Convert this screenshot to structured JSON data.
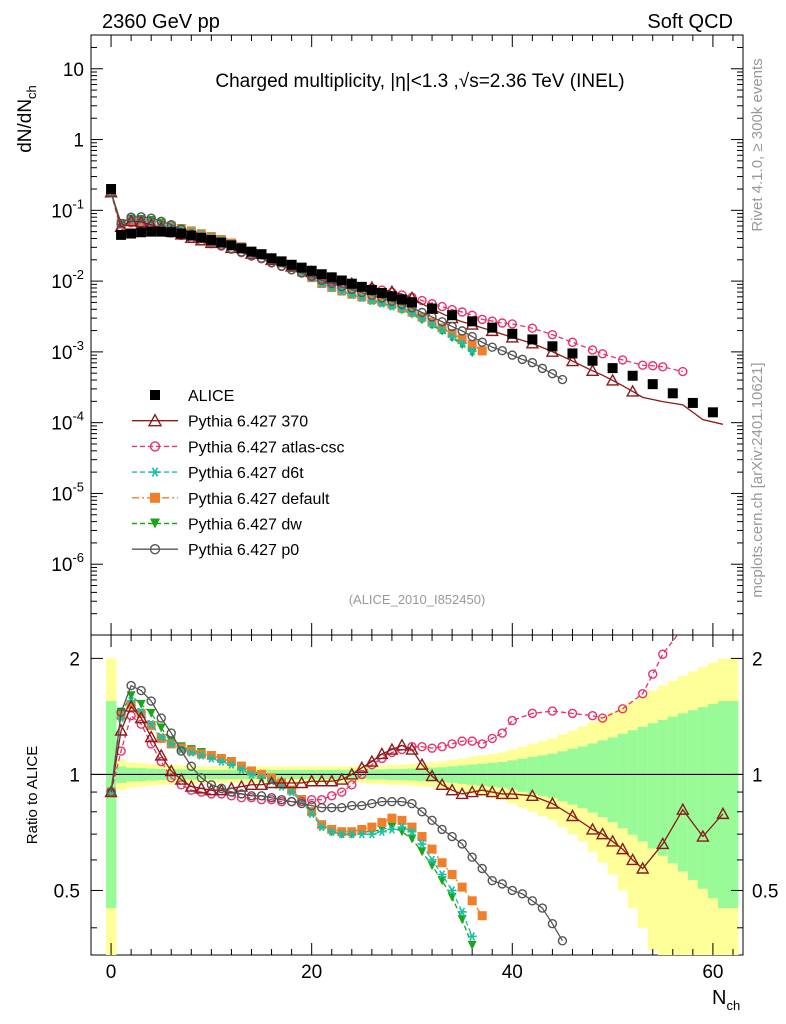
{
  "header": {
    "left": "2360 GeV pp",
    "right": "Soft QCD"
  },
  "side_labels": {
    "rivet": "Rivet 4.1.0, ≥ 300k events",
    "mcplots": "mcplots.cern.ch [arXiv:2401.10621]"
  },
  "chart_data": {
    "type": "scatter",
    "title": "Charged multiplicity, |η|<1.3 ,√s=2.36 TeV (INEL)",
    "analysis_tag": "(ALICE_2010_I852450)",
    "ylabel": "dN/dN_ch",
    "xlabel": "N_ch",
    "ratio_ylabel": "Ratio to ALICE",
    "xlim": [
      -2,
      63
    ],
    "ylim": [
      1e-07,
      30
    ],
    "ratio_ylim": [
      0.34,
      2.3
    ],
    "x_ticks": [
      0,
      20,
      40,
      60
    ],
    "y_ticks": [
      "10",
      "1",
      "10^-1",
      "10^-2",
      "10^-3",
      "10^-4",
      "10^-5",
      "10^-6"
    ],
    "ratio_ticks": [
      "0.5",
      "1",
      "2"
    ],
    "x": [
      0,
      1,
      2,
      3,
      4,
      5,
      6,
      7,
      8,
      9,
      10,
      11,
      12,
      13,
      14,
      15,
      16,
      17,
      18,
      19,
      20,
      21,
      22,
      23,
      24,
      25,
      26,
      27,
      28,
      29,
      30,
      31,
      32,
      33,
      34,
      35,
      36,
      37,
      38,
      39,
      40,
      41,
      42,
      43,
      44,
      45,
      46,
      47,
      48,
      49,
      50,
      51,
      52,
      53,
      54,
      55,
      56,
      57,
      58,
      59,
      60,
      61,
      62
    ],
    "alice": [
      0.2,
      0.045,
      0.047,
      0.049,
      0.05,
      0.05,
      0.049,
      0.047,
      0.044,
      0.041,
      0.038,
      0.035,
      0.032,
      0.029,
      0.026,
      0.024,
      0.021,
      0.019,
      0.017,
      0.0155,
      0.014,
      0.0125,
      0.0113,
      0.0102,
      0.0092,
      0.0083,
      0.0075,
      0.0068,
      0.0061,
      0.0055,
      0.005,
      0.0045,
      0.0041,
      0.0037,
      0.0033,
      0.003,
      0.0027,
      0.0024,
      0.0022,
      0.002,
      0.0018,
      0.0016,
      0.0015,
      0.0013,
      0.0012,
      0.0011,
      0.00095,
      0.00085,
      0.00075,
      0.00067,
      0.00059,
      0.00052,
      0.00046,
      0.0004,
      0.00035,
      0.0003,
      0.00026,
      0.00022,
      0.00019,
      0.00016,
      0.00014,
      0.00012,
      0.0001
    ],
    "alice_markers": [
      0,
      1,
      2,
      3,
      4,
      5,
      6,
      7,
      8,
      9,
      10,
      11,
      12,
      13,
      14,
      15,
      16,
      17,
      18,
      19,
      20,
      21,
      22,
      23,
      24,
      25,
      26,
      27,
      28,
      29,
      30,
      32,
      34,
      36,
      38,
      40,
      42,
      44,
      46,
      48,
      50,
      52,
      54,
      56,
      58,
      60
    ],
    "band_outer": [
      1.0,
      0.09,
      0.075,
      0.07,
      0.065,
      0.06,
      0.06,
      0.055,
      0.055,
      0.05,
      0.05,
      0.05,
      0.05,
      0.05,
      0.05,
      0.05,
      0.05,
      0.05,
      0.05,
      0.05,
      0.05,
      0.05,
      0.05,
      0.05,
      0.05,
      0.05,
      0.055,
      0.055,
      0.06,
      0.06,
      0.065,
      0.07,
      0.075,
      0.08,
      0.09,
      0.1,
      0.11,
      0.12,
      0.13,
      0.14,
      0.16,
      0.18,
      0.2,
      0.22,
      0.24,
      0.27,
      0.3,
      0.33,
      0.37,
      0.41,
      0.45,
      0.5,
      0.55,
      0.6,
      0.65,
      0.7,
      0.75,
      0.8,
      0.85,
      0.9,
      0.95,
      1.0,
      1.0
    ],
    "band_inner_scale": 0.55,
    "band_legend": [
      "ALICE total uncertainty (yellow)",
      "ALICE stat. uncertainty (green)"
    ],
    "series": [
      {
        "name": "ALICE",
        "style": "square",
        "color": "#000000"
      },
      {
        "name": "Pythia 6.427 370",
        "style": "triangle-open",
        "color": "#8b1a1a",
        "ratio": [
          0.9,
          1.3,
          1.5,
          1.4,
          1.25,
          1.12,
          1.02,
          0.97,
          0.93,
          0.92,
          0.91,
          0.91,
          0.92,
          0.93,
          0.94,
          0.94,
          0.95,
          0.95,
          0.95,
          0.95,
          0.96,
          0.96,
          0.96,
          0.97,
          1.0,
          1.04,
          1.08,
          1.13,
          1.16,
          1.19,
          1.16,
          1.06,
          0.99,
          0.94,
          0.91,
          0.89,
          0.9,
          0.91,
          0.9,
          0.89,
          0.89,
          0.88,
          0.84,
          0.78,
          0.72,
          0.7,
          0.67,
          0.64,
          0.6,
          0.57,
          0.66,
          0.81,
          0.69,
          0.79
        ],
        "ratio_x": [
          0,
          1,
          2,
          3,
          4,
          5,
          6,
          7,
          8,
          9,
          10,
          11,
          12,
          13,
          14,
          15,
          16,
          17,
          18,
          19,
          20,
          21,
          22,
          23,
          24,
          25,
          26,
          27,
          28,
          29,
          30,
          31,
          32,
          33,
          34,
          35,
          36,
          37,
          38,
          39,
          40,
          42,
          44,
          46,
          48,
          49,
          50,
          51,
          52,
          53,
          55,
          57,
          59,
          61
        ],
        "main_markers": [
          0,
          1,
          2,
          3,
          4,
          5,
          6,
          7,
          8,
          9,
          10,
          12,
          14,
          16,
          18,
          20,
          22,
          24,
          26,
          28,
          30,
          32,
          34,
          36,
          38,
          40,
          42,
          44,
          46,
          48,
          50,
          52,
          54,
          56,
          58,
          60,
          62
        ]
      },
      {
        "name": "Pythia 6.427 atlas-csc",
        "style": "circle-open-dashed",
        "color": "#e8326a",
        "ratio": [
          0.9,
          1.15,
          1.42,
          1.35,
          1.2,
          1.08,
          0.98,
          0.94,
          0.91,
          0.9,
          0.89,
          0.89,
          0.88,
          0.87,
          0.87,
          0.86,
          0.86,
          0.85,
          0.85,
          0.85,
          0.86,
          0.86,
          0.88,
          0.9,
          0.94,
          1.0,
          1.06,
          1.1,
          1.14,
          1.16,
          1.18,
          1.18,
          1.17,
          1.18,
          1.2,
          1.22,
          1.22,
          1.2,
          1.24,
          1.28,
          1.38,
          1.44,
          1.46,
          1.44,
          1.42,
          1.4,
          1.48,
          1.62,
          1.82,
          2.05,
          2.4
        ],
        "ratio_x": [
          0,
          1,
          2,
          3,
          4,
          5,
          6,
          7,
          8,
          9,
          10,
          11,
          12,
          13,
          14,
          15,
          16,
          17,
          18,
          19,
          20,
          21,
          22,
          23,
          24,
          25,
          26,
          27,
          28,
          29,
          30,
          31,
          32,
          33,
          34,
          35,
          36,
          37,
          38,
          39,
          40,
          42,
          44,
          46,
          48,
          49,
          51,
          53,
          54,
          55,
          57
        ]
      },
      {
        "name": "Pythia 6.427 d6t",
        "style": "star-dashed",
        "color": "#17bfa6",
        "ratio": [
          0.9,
          1.4,
          1.55,
          1.45,
          1.35,
          1.25,
          1.2,
          1.16,
          1.14,
          1.12,
          1.1,
          1.08,
          1.06,
          1.03,
          1.0,
          0.98,
          0.96,
          0.93,
          0.9,
          0.85,
          0.79,
          0.73,
          0.71,
          0.7,
          0.7,
          0.7,
          0.7,
          0.71,
          0.72,
          0.73,
          0.71,
          0.66,
          0.6,
          0.55,
          0.5,
          0.44,
          0.38
        ]
      },
      {
        "name": "Pythia 6.427 default",
        "style": "square-dashdot",
        "color": "#f07f2c",
        "ratio": [
          0.9,
          1.42,
          1.52,
          1.44,
          1.34,
          1.24,
          1.2,
          1.17,
          1.15,
          1.13,
          1.12,
          1.1,
          1.08,
          1.05,
          1.02,
          1.0,
          0.98,
          0.95,
          0.91,
          0.86,
          0.8,
          0.74,
          0.72,
          0.71,
          0.71,
          0.72,
          0.73,
          0.75,
          0.77,
          0.76,
          0.73,
          0.69,
          0.64,
          0.59,
          0.55,
          0.51,
          0.47,
          0.43
        ]
      },
      {
        "name": "Pythia 6.427 dw",
        "style": "triangle-down-dashed",
        "color": "#1aa51a",
        "ratio": [
          0.9,
          1.45,
          1.6,
          1.52,
          1.44,
          1.32,
          1.22,
          1.18,
          1.16,
          1.14,
          1.12,
          1.1,
          1.08,
          1.05,
          1.02,
          1.0,
          0.97,
          0.94,
          0.91,
          0.86,
          0.8,
          0.74,
          0.71,
          0.7,
          0.7,
          0.71,
          0.71,
          0.72,
          0.73,
          0.71,
          0.68,
          0.63,
          0.58,
          0.53,
          0.48,
          0.42,
          0.36
        ]
      },
      {
        "name": "Pythia 6.427 p0",
        "style": "circle-open",
        "color": "#555555",
        "ratio": [
          0.9,
          1.45,
          1.7,
          1.65,
          1.55,
          1.4,
          1.28,
          1.15,
          1.05,
          0.98,
          0.94,
          0.92,
          0.9,
          0.89,
          0.88,
          0.88,
          0.87,
          0.86,
          0.85,
          0.84,
          0.83,
          0.82,
          0.82,
          0.82,
          0.83,
          0.83,
          0.84,
          0.85,
          0.85,
          0.85,
          0.84,
          0.8,
          0.76,
          0.72,
          0.69,
          0.66,
          0.61,
          0.57,
          0.53,
          0.52,
          0.5,
          0.49,
          0.47,
          0.45,
          0.41,
          0.37
        ]
      }
    ]
  }
}
